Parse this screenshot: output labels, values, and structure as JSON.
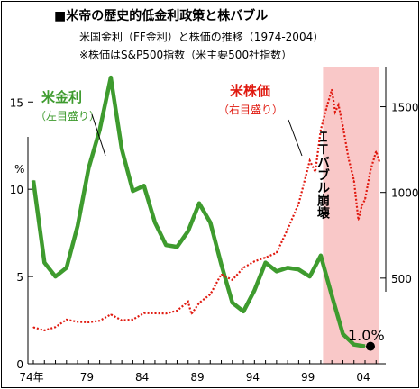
{
  "title": "■米帝の歴史的低金利政策と株バブル",
  "subtitle1": "米国金利（FF金利）と株価の推移（1974-2004）",
  "subtitle2": "※株価はS&P500指数（米主要500社指数）",
  "colors": {
    "rate": "#3e9b2e",
    "stock": "#e0190f",
    "band": "#f9c8c8"
  },
  "chart_data": {
    "type": "line",
    "title": "■米帝の歴史的低金利政策と株バブル",
    "x_tick_labels": [
      {
        "x": 1974,
        "label": "74年"
      },
      {
        "x": 1979,
        "label": "79"
      },
      {
        "x": 1984,
        "label": "84"
      },
      {
        "x": 1989,
        "label": "89"
      },
      {
        "x": 1994,
        "label": "94"
      },
      {
        "x": 1999,
        "label": "99"
      },
      {
        "x": 2004,
        "label": "04"
      }
    ],
    "xlim": [
      1974,
      2005
    ],
    "left_axis": {
      "unit": "%",
      "ylim": [
        0,
        18
      ],
      "ticks": [
        0,
        5,
        10,
        15
      ]
    },
    "right_axis": {
      "ylim": [
        0,
        1700
      ],
      "ticks": [
        500,
        1000,
        1500
      ]
    },
    "shaded_region": {
      "x": [
        2000.2,
        2005.8
      ],
      "label": "ＩＴバブル崩壊"
    },
    "series": [
      {
        "name": "米金利",
        "sublabel": "（左目盛り）",
        "axis": "left",
        "style": "solid",
        "points": [
          [
            1974.0,
            10.5
          ],
          [
            1975.0,
            5.8
          ],
          [
            1976.0,
            5.0
          ],
          [
            1977.0,
            5.5
          ],
          [
            1978.0,
            7.9
          ],
          [
            1979.0,
            11.2
          ],
          [
            1980.0,
            13.4
          ],
          [
            1981.0,
            16.4
          ],
          [
            1982.0,
            12.3
          ],
          [
            1983.0,
            9.9
          ],
          [
            1984.0,
            10.2
          ],
          [
            1985.0,
            8.1
          ],
          [
            1986.0,
            6.8
          ],
          [
            1987.0,
            6.7
          ],
          [
            1988.0,
            7.6
          ],
          [
            1989.0,
            9.2
          ],
          [
            1990.0,
            8.1
          ],
          [
            1991.0,
            5.7
          ],
          [
            1992.0,
            3.5
          ],
          [
            1993.0,
            3.0
          ],
          [
            1994.0,
            4.2
          ],
          [
            1995.0,
            5.8
          ],
          [
            1996.0,
            5.3
          ],
          [
            1997.0,
            5.5
          ],
          [
            1998.0,
            5.4
          ],
          [
            1999.0,
            5.0
          ],
          [
            2000.0,
            6.2
          ],
          [
            2001.0,
            3.9
          ],
          [
            2002.0,
            1.7
          ],
          [
            2003.0,
            1.1
          ],
          [
            2004.0,
            1.0
          ]
        ],
        "end_label": "1.0%"
      },
      {
        "name": "米株価",
        "sublabel": "（右目盛り）",
        "axis": "right",
        "style": "dotted",
        "points": [
          [
            1974.0,
            213
          ],
          [
            1975.0,
            195
          ],
          [
            1976.0,
            214
          ],
          [
            1977.0,
            258
          ],
          [
            1978.0,
            245
          ],
          [
            1979.0,
            242
          ],
          [
            1980.0,
            251
          ],
          [
            1981.0,
            288
          ],
          [
            1982.0,
            254
          ],
          [
            1983.0,
            258
          ],
          [
            1984.0,
            296
          ],
          [
            1985.0,
            295
          ],
          [
            1986.0,
            293
          ],
          [
            1987.0,
            310
          ],
          [
            1988.0,
            363
          ],
          [
            1988.3,
            290
          ],
          [
            1989.0,
            355
          ],
          [
            1990.0,
            405
          ],
          [
            1991.0,
            522
          ],
          [
            1992.0,
            490
          ],
          [
            1993.0,
            560
          ],
          [
            1994.0,
            598
          ],
          [
            1995.0,
            620
          ],
          [
            1996.0,
            648
          ],
          [
            1997.0,
            785
          ],
          [
            1998.0,
            935
          ],
          [
            1999.0,
            1185
          ],
          [
            1999.5,
            1120
          ],
          [
            2000.0,
            1365
          ],
          [
            2000.5,
            1490
          ],
          [
            2001.0,
            1600
          ],
          [
            2001.3,
            1470
          ],
          [
            2001.6,
            1510
          ],
          [
            2002.0,
            1385
          ],
          [
            2002.5,
            1200
          ],
          [
            2003.0,
            1070
          ],
          [
            2003.4,
            840
          ],
          [
            2003.7,
            920
          ],
          [
            2004.0,
            960
          ],
          [
            2004.5,
            1130
          ],
          [
            2005.0,
            1240
          ],
          [
            2005.3,
            1180
          ]
        ]
      }
    ]
  }
}
